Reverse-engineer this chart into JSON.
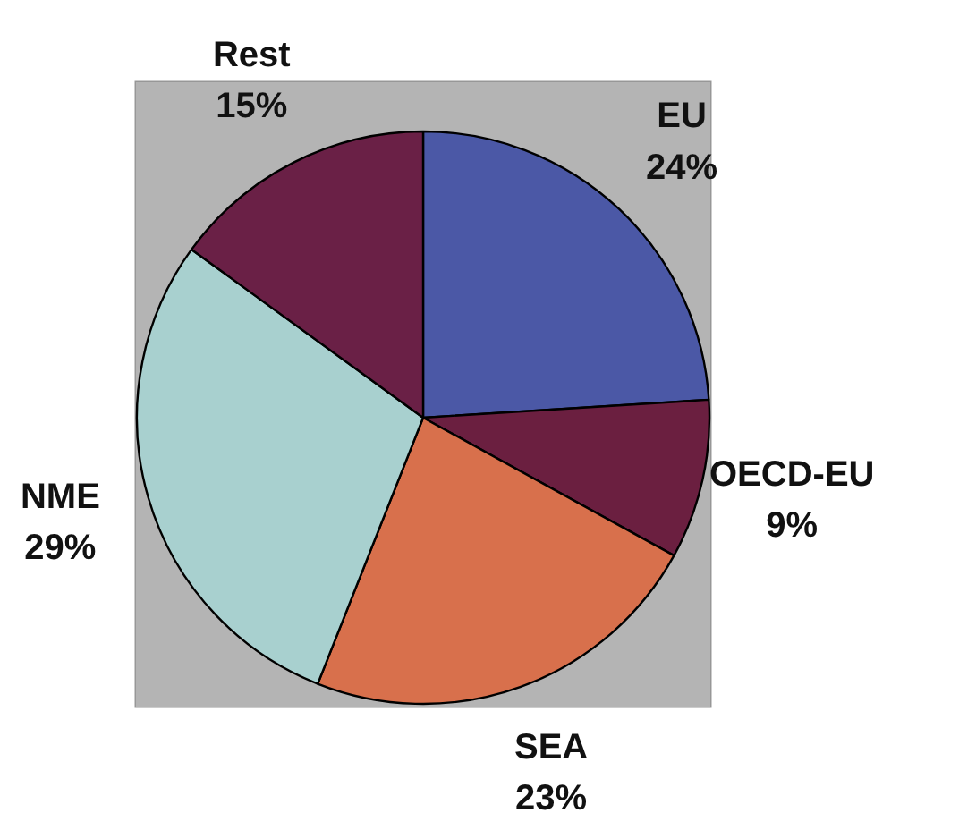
{
  "chart_data": {
    "type": "pie",
    "categories": [
      "EU",
      "OECD-EU",
      "SEA",
      "NME",
      "Rest"
    ],
    "values": [
      24,
      9,
      23,
      29,
      15
    ],
    "value_labels": [
      "24%",
      "9%",
      "23%",
      "29%",
      "15%"
    ],
    "colors": [
      "#4b58a6",
      "#6b1f40",
      "#d8704c",
      "#a8d0cf",
      "#6a2046"
    ]
  }
}
